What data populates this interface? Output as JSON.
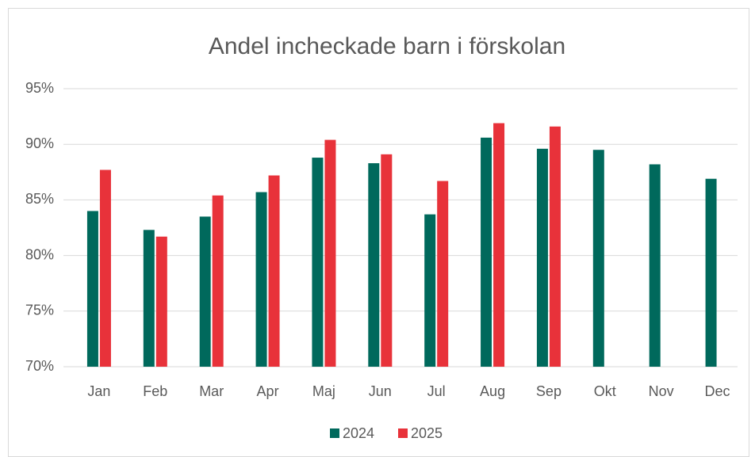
{
  "chart_data": {
    "type": "bar",
    "title": "Andel incheckade barn i förskolan",
    "categories": [
      "Jan",
      "Feb",
      "Mar",
      "Apr",
      "Maj",
      "Jun",
      "Jul",
      "Aug",
      "Sep",
      "Okt",
      "Nov",
      "Dec"
    ],
    "series": [
      {
        "name": "2024",
        "color": "#00695c",
        "values": [
          84.0,
          82.3,
          83.5,
          85.7,
          88.8,
          88.3,
          83.7,
          90.6,
          89.6,
          89.5,
          88.2,
          86.9
        ]
      },
      {
        "name": "2025",
        "color": "#e8323a",
        "values": [
          87.7,
          81.7,
          85.4,
          87.2,
          90.4,
          89.1,
          86.7,
          91.9,
          91.6,
          null,
          null,
          null
        ]
      }
    ],
    "ylim": [
      70,
      95
    ],
    "yticks": [
      {
        "value": 70,
        "label": "70%"
      },
      {
        "value": 75,
        "label": "75%"
      },
      {
        "value": 80,
        "label": "80%"
      },
      {
        "value": 85,
        "label": "85%"
      },
      {
        "value": 90,
        "label": "90%"
      },
      {
        "value": 95,
        "label": "95%"
      }
    ],
    "grid": true,
    "legend": "bottom"
  }
}
